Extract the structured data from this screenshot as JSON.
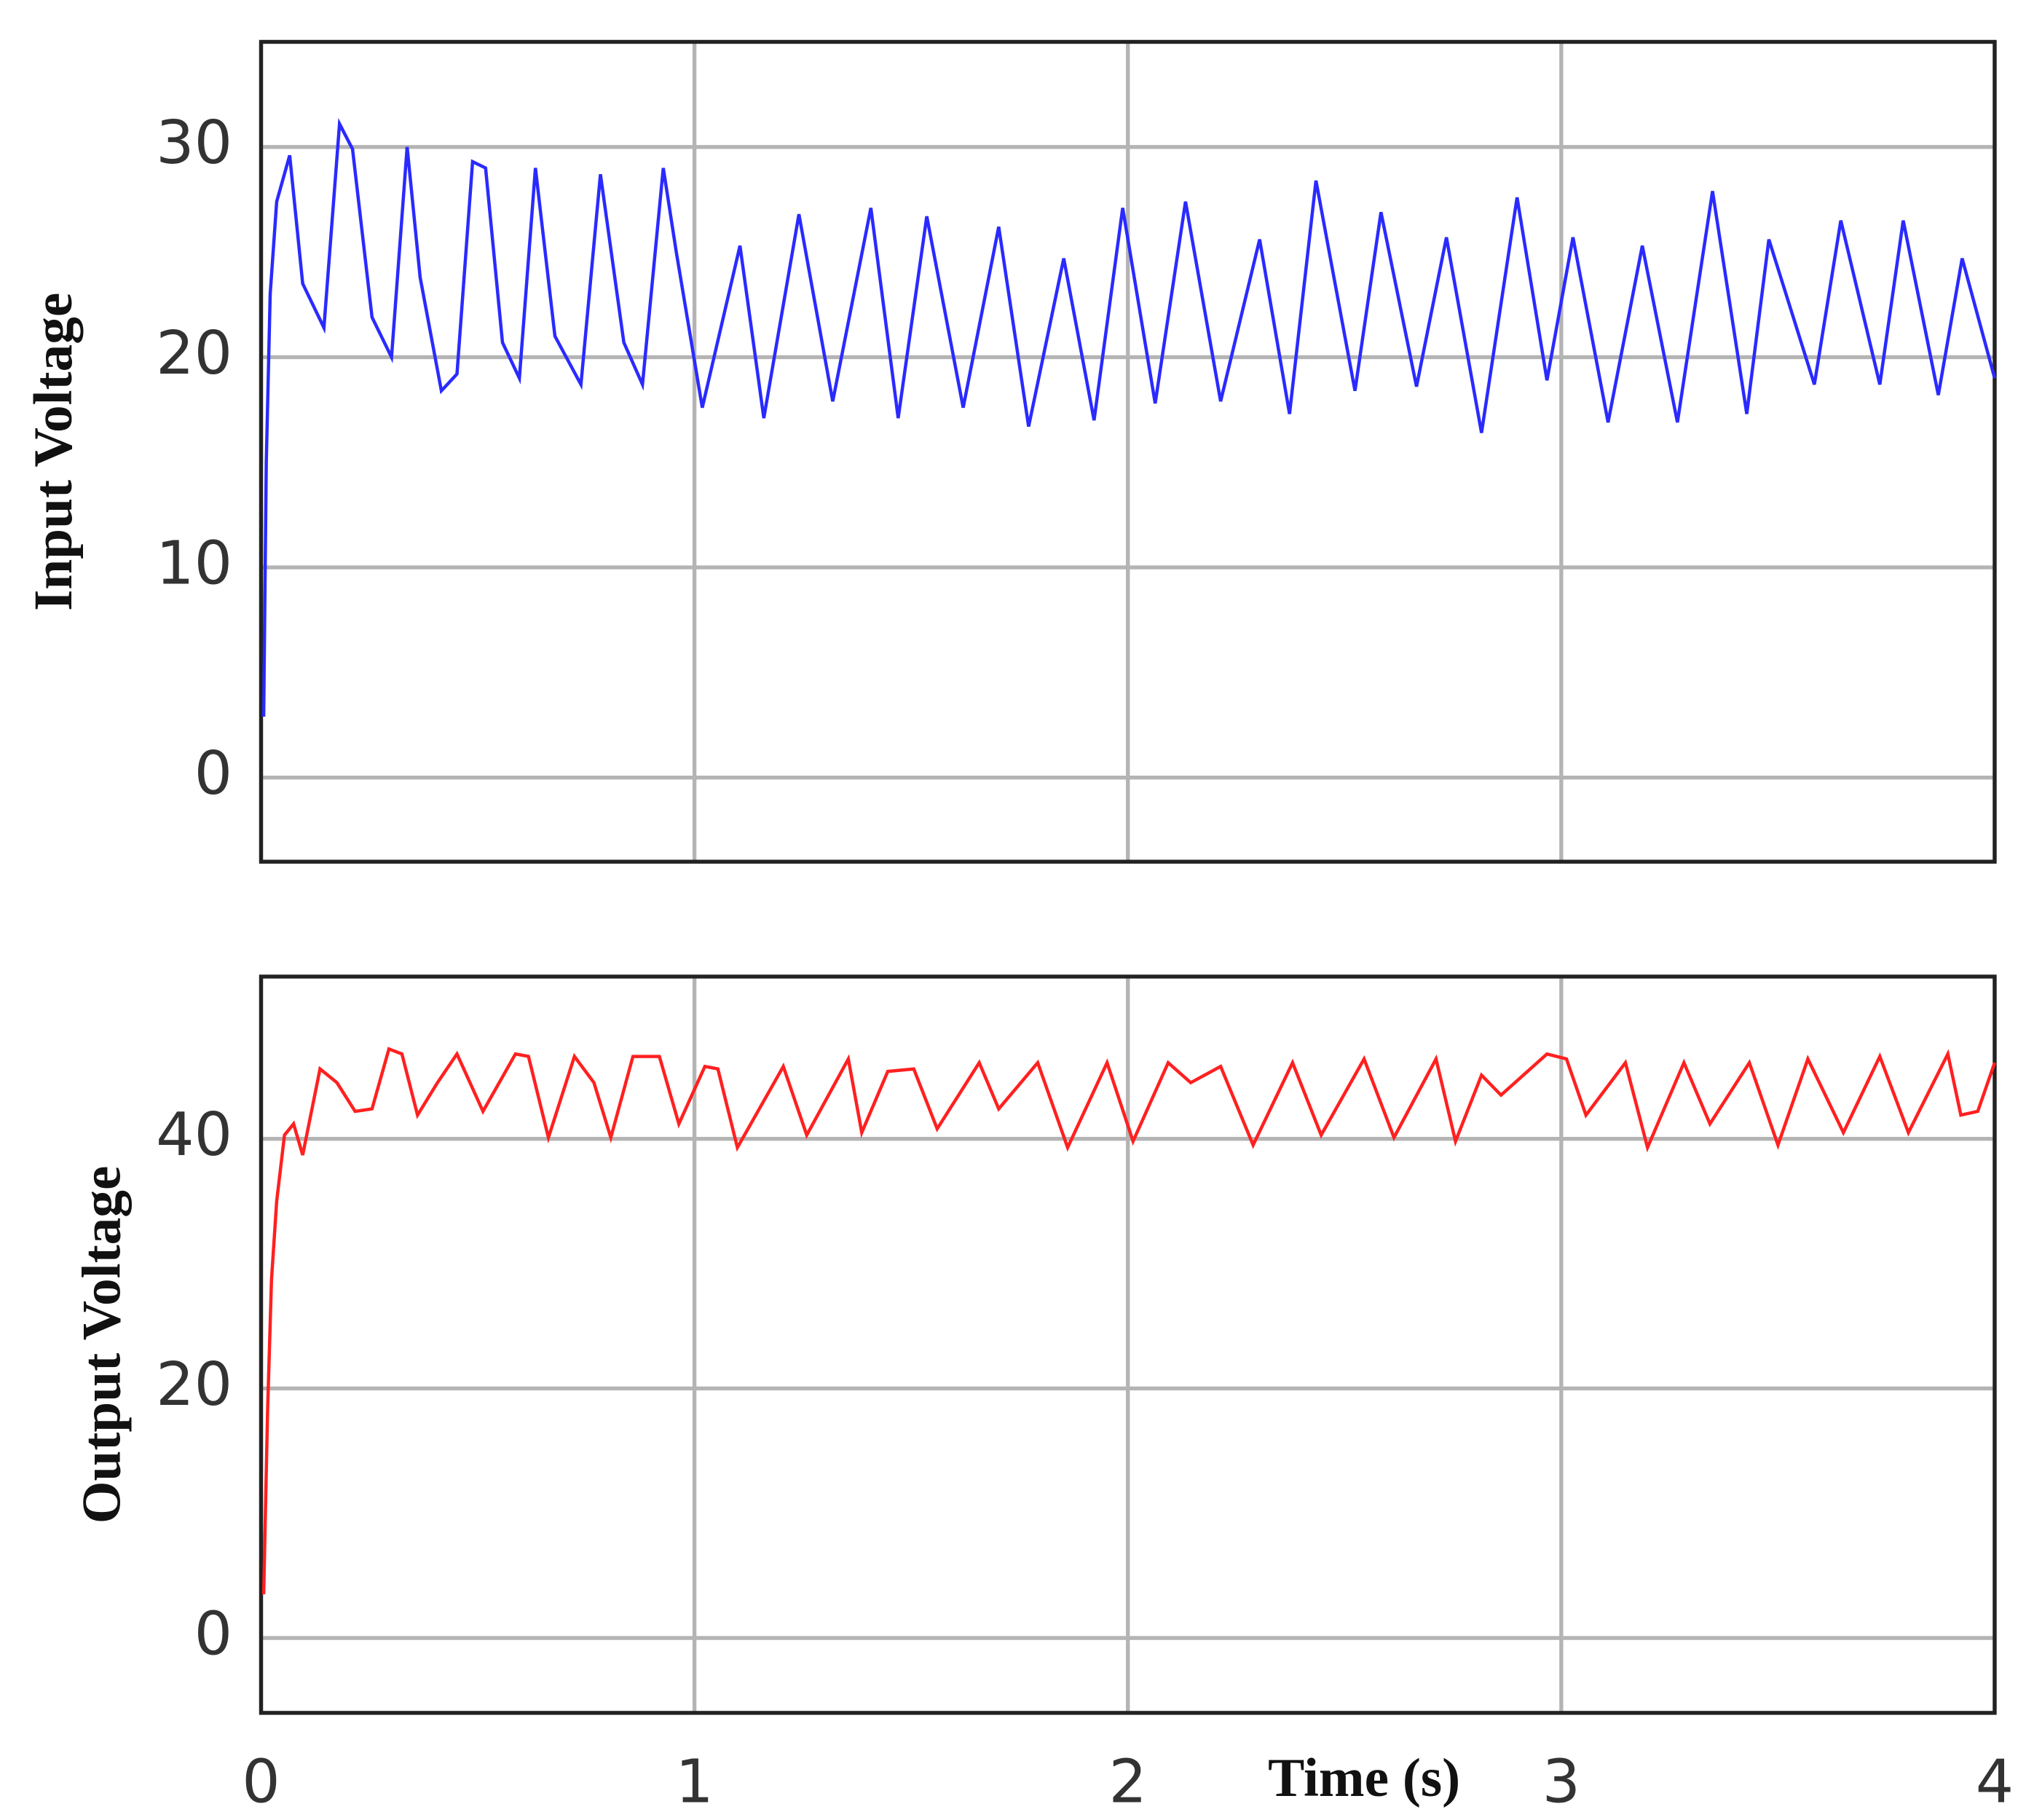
{
  "chart_data": [
    {
      "type": "line",
      "ylabel": "Input Voltage",
      "xlim": [
        0,
        4
      ],
      "xticks": [
        0,
        1,
        2,
        3,
        4
      ],
      "ylim": [
        -4,
        35
      ],
      "yticks": [
        0,
        10,
        20,
        30
      ],
      "grid": true,
      "series": [
        {
          "name": "Input Voltage",
          "color": "#2a2aff",
          "x": [
            0.006,
            0.012,
            0.021,
            0.036,
            0.066,
            0.096,
            0.145,
            0.181,
            0.211,
            0.256,
            0.301,
            0.337,
            0.367,
            0.416,
            0.452,
            0.488,
            0.518,
            0.557,
            0.596,
            0.633,
            0.678,
            0.738,
            0.783,
            0.837,
            0.88,
            0.928,
            0.958,
            1.018,
            1.105,
            1.16,
            1.241,
            1.319,
            1.407,
            1.47,
            1.536,
            1.62,
            1.702,
            1.771,
            1.852,
            1.922,
            1.988,
            2.063,
            2.133,
            2.214,
            2.304,
            2.373,
            2.434,
            2.524,
            2.584,
            2.666,
            2.735,
            2.816,
            2.898,
            2.967,
            3.027,
            3.108,
            3.187,
            3.268,
            3.349,
            3.428,
            3.479,
            3.584,
            3.645,
            3.735,
            3.789,
            3.87,
            3.925,
            4.0
          ],
          "values": [
            2.9,
            15,
            23,
            27.4,
            29.6,
            23.5,
            21.4,
            31.1,
            29.9,
            21.9,
            20,
            30,
            23.8,
            18.4,
            19.2,
            29.3,
            29,
            20.7,
            19,
            29,
            21,
            18.7,
            28.7,
            20.7,
            18.7,
            29,
            25,
            17.6,
            25.3,
            17.1,
            26.8,
            17.9,
            27.1,
            17.1,
            26.7,
            17.6,
            26.2,
            16.7,
            24.7,
            17,
            27.1,
            17.8,
            27.4,
            17.9,
            25.6,
            17.3,
            28.4,
            18.4,
            26.9,
            18.6,
            25.7,
            16.4,
            27.6,
            18.9,
            25.7,
            16.9,
            25.3,
            16.9,
            27.9,
            17.3,
            25.6,
            18.7,
            26.5,
            18.7,
            26.5,
            18.2,
            24.7,
            19
          ]
        }
      ]
    },
    {
      "type": "line",
      "ylabel": "Output Voltage",
      "xlabel": "Time (s)",
      "xlim": [
        0,
        4
      ],
      "xticks": [
        0,
        1,
        2,
        3,
        4
      ],
      "ylim": [
        -6,
        53
      ],
      "yticks": [
        0,
        20,
        40
      ],
      "grid": true,
      "series": [
        {
          "name": "Output Voltage",
          "color": "#ff2020",
          "x": [
            0.006,
            0.015,
            0.024,
            0.036,
            0.054,
            0.075,
            0.096,
            0.136,
            0.175,
            0.217,
            0.256,
            0.295,
            0.325,
            0.361,
            0.407,
            0.452,
            0.512,
            0.587,
            0.617,
            0.663,
            0.723,
            0.768,
            0.807,
            0.858,
            0.919,
            0.964,
            1.024,
            1.054,
            1.099,
            1.205,
            1.259,
            1.355,
            1.386,
            1.446,
            1.506,
            1.56,
            1.657,
            1.702,
            1.792,
            1.861,
            1.952,
            2.012,
            2.093,
            2.145,
            2.214,
            2.289,
            2.38,
            2.446,
            2.545,
            2.614,
            2.711,
            2.756,
            2.816,
            2.861,
            2.967,
            3.012,
            3.057,
            3.148,
            3.199,
            3.283,
            3.343,
            3.434,
            3.5,
            3.569,
            3.651,
            3.735,
            3.801,
            3.892,
            3.922,
            3.961,
            4.0
          ],
          "values": [
            3.5,
            18.2,
            28.7,
            35,
            40.3,
            41.2,
            38.7,
            45.6,
            44.5,
            42.2,
            42.4,
            47.2,
            46.8,
            41.9,
            44.5,
            46.8,
            42.2,
            46.8,
            46.6,
            40.1,
            46.6,
            44.5,
            40.1,
            46.6,
            46.6,
            41.2,
            45.8,
            45.6,
            39.3,
            45.8,
            40.3,
            46.4,
            40.5,
            45.4,
            45.6,
            40.8,
            46.1,
            42.4,
            46.1,
            39.3,
            46.1,
            39.8,
            46.1,
            44.5,
            45.8,
            39.5,
            46.1,
            40.3,
            46.4,
            40.1,
            46.4,
            39.8,
            45.1,
            43.5,
            46.8,
            46.4,
            41.9,
            46.1,
            39.3,
            46.1,
            41.2,
            46.1,
            39.5,
            46.4,
            40.5,
            46.6,
            40.5,
            46.8,
            41.9,
            42.2,
            46.1
          ]
        }
      ]
    }
  ]
}
